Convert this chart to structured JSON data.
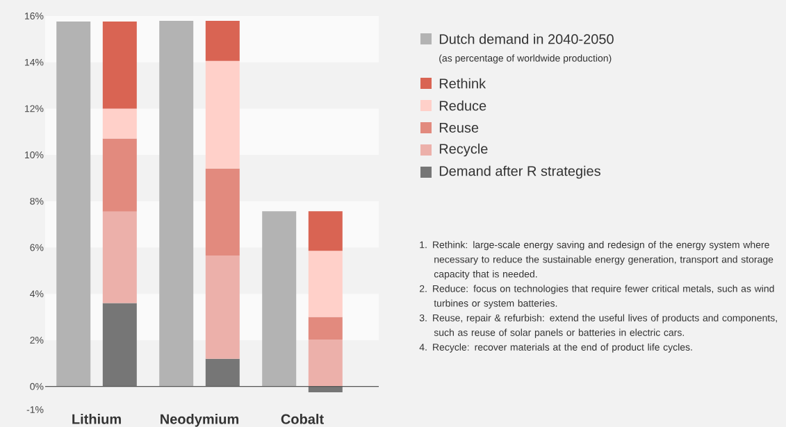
{
  "chart_data": {
    "type": "bar",
    "legend": "top right",
    "categories": [
      "Lithium",
      "Neodymium",
      "Cobalt"
    ],
    "ylim": [
      -1,
      16
    ],
    "yticks": [
      {
        "value": -1,
        "label": "-1%"
      },
      {
        "value": 0,
        "label": "0%"
      },
      {
        "value": 2,
        "label": "2%"
      },
      {
        "value": 4,
        "label": "4%"
      },
      {
        "value": 6,
        "label": "6%"
      },
      {
        "value": 8,
        "label": "8%"
      },
      {
        "value": 10,
        "label": "10%"
      },
      {
        "value": 12,
        "label": "12%"
      },
      {
        "value": 14,
        "label": "14%"
      },
      {
        "value": 16,
        "label": "16%"
      }
    ],
    "bands": [
      {
        "axis": "y",
        "from": 14,
        "to": 16,
        "color": "#fafafa"
      },
      {
        "axis": "y",
        "from": 10,
        "to": 12,
        "color": "#fafafa"
      },
      {
        "axis": "y",
        "from": 6,
        "to": 8,
        "color": "#fafafa"
      },
      {
        "axis": "y",
        "from": 2,
        "to": 4,
        "color": "#fafafa"
      }
    ],
    "series": [
      {
        "name": "Dutch demand in 2040-2050",
        "color": "#b3b3b3",
        "values": [
          15.76,
          15.79,
          7.57
        ]
      },
      {
        "name": "Demand after R strategies",
        "color": "#767676",
        "values": [
          3.6,
          1.2,
          -0.25
        ],
        "base": [
          0,
          0,
          0
        ]
      },
      {
        "name": "Recycle",
        "color": "#ecb0aa",
        "values": [
          3.95,
          4.46,
          2.03
        ],
        "base": [
          3.6,
          1.2,
          0
        ]
      },
      {
        "name": "Reuse",
        "color": "#e28a7e",
        "values": [
          3.16,
          3.75,
          0.97
        ],
        "base": [
          7.55,
          5.66,
          2.03
        ]
      },
      {
        "name": "Reduce",
        "color": "#ffd0c9",
        "values": [
          1.29,
          4.65,
          2.86
        ],
        "base": [
          10.71,
          9.41,
          3.0
        ]
      },
      {
        "name": "Rethink",
        "color": "#d96453",
        "values": [
          3.76,
          1.73,
          1.71
        ],
        "base": [
          12.0,
          14.06,
          5.86
        ]
      }
    ],
    "annotations": [
      "(as percentage of worldwide production)",
      "1. Rethink: large-scale energy saving and redesign of the energy system where necessary to reduce the sustainable energy generation, transport and storage capacity that is needed.",
      "2. Reduce: focus on technologies that require fewer critical metals, such as wind turbines or system batteries.",
      "3. Reuse, repair & refurbish: extend the useful lives of products and components, such as reuse of solar panels or batteries in electric cars.",
      "4. Recycle: recover materials at the end of product life cycles."
    ]
  }
}
